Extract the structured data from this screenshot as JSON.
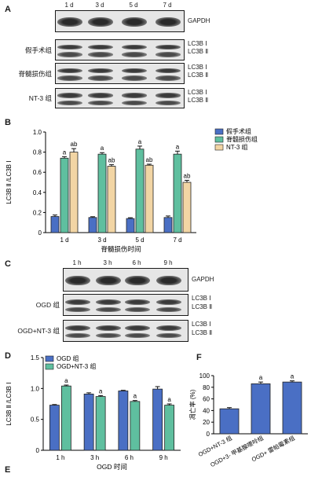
{
  "panels": {
    "A": {
      "letter": "A",
      "lanes": [
        "1 d",
        "3 d",
        "5 d",
        "7 d"
      ],
      "rows": [
        {
          "group": "",
          "markers": [
            "GAPDH"
          ]
        },
        {
          "group": "假手术组",
          "markers": [
            "LC3B Ⅰ",
            "LC3B Ⅱ"
          ]
        },
        {
          "group": "脊髓损伤组",
          "markers": [
            "LC3B Ⅰ",
            "LC3B Ⅱ"
          ]
        },
        {
          "group": "NT-3 组",
          "markers": [
            "LC3B Ⅰ",
            "LC3B Ⅱ"
          ]
        }
      ]
    },
    "B": {
      "letter": "B"
    },
    "C": {
      "letter": "C",
      "lanes": [
        "1 h",
        "3 h",
        "6 h",
        "9 h"
      ],
      "rows": [
        {
          "group": "",
          "markers": [
            "GAPDH"
          ]
        },
        {
          "group": "OGD 组",
          "markers": [
            "LC3B Ⅰ",
            "LC3B Ⅱ"
          ]
        },
        {
          "group": "OGD+NT-3 组",
          "markers": [
            "LC3B Ⅰ",
            "LC3B Ⅱ"
          ]
        }
      ]
    },
    "D": {
      "letter": "D"
    },
    "E": {
      "letter": "E"
    },
    "F": {
      "letter": "F"
    }
  },
  "chart_data": [
    {
      "panel": "B",
      "type": "bar",
      "categories": [
        "1 d",
        "3 d",
        "5 d",
        "7 d"
      ],
      "xlabel": "脊髓损伤时间",
      "ylabel": "LC3B Ⅱ /LC3B Ⅰ",
      "ylim": [
        0,
        1.0
      ],
      "yticks": [
        "0",
        "0.2",
        "0.4",
        "0.6",
        "0.8",
        "1.0"
      ],
      "legend_position": "top-right",
      "series": [
        {
          "name": "假手术组",
          "color": "#4a6fc4",
          "values": [
            0.16,
            0.15,
            0.14,
            0.15
          ],
          "errors": [
            0.015,
            0.008,
            0.008,
            0.015
          ],
          "labels": [
            "",
            "",
            "",
            ""
          ]
        },
        {
          "name": "脊髓损伤组",
          "color": "#5fbf9f",
          "values": [
            0.74,
            0.78,
            0.83,
            0.78
          ],
          "errors": [
            0.015,
            0.015,
            0.03,
            0.03
          ],
          "labels": [
            "a",
            "a",
            "a",
            "a"
          ]
        },
        {
          "name": "NT-3 组",
          "color": "#f2d5a4",
          "values": [
            0.8,
            0.66,
            0.67,
            0.5
          ],
          "errors": [
            0.035,
            0.015,
            0.01,
            0.02
          ],
          "labels": [
            "ab",
            "ab",
            "ab",
            "ab"
          ]
        }
      ]
    },
    {
      "panel": "D",
      "type": "bar",
      "categories": [
        "1 h",
        "3 h",
        "6 h",
        "9 h"
      ],
      "xlabel": "OGD 时间",
      "ylabel": "LC3B Ⅱ /LC3B Ⅰ",
      "ylim": [
        0,
        1.5
      ],
      "yticks": [
        "0",
        "0.5",
        "1.0",
        "1.5"
      ],
      "legend_position": "top-left",
      "series": [
        {
          "name": "OGD 组",
          "color": "#4a6fc4",
          "values": [
            0.73,
            0.91,
            0.96,
            0.99
          ],
          "errors": [
            0.01,
            0.02,
            0.01,
            0.04
          ],
          "labels": [
            "",
            "",
            "",
            ""
          ]
        },
        {
          "name": "OGD+NT-3 组",
          "color": "#5fbf9f",
          "values": [
            1.04,
            0.87,
            0.79,
            0.73
          ],
          "errors": [
            0.015,
            0.015,
            0.015,
            0.02
          ],
          "labels": [
            "a",
            "a",
            "a",
            "a"
          ]
        }
      ]
    },
    {
      "panel": "F",
      "type": "bar",
      "categories": [
        "OGD+NT-3 组",
        "OGD+3- 甲基腺嘌呤组",
        "OGD+ 雷帕霉素组"
      ],
      "ylabel": "凋亡率 (%)",
      "ylim": [
        0,
        100
      ],
      "yticks": [
        "0",
        "20",
        "40",
        "60",
        "80",
        "100"
      ],
      "series": [
        {
          "name": "",
          "color": "#4a6fc4",
          "values": [
            43,
            86,
            89
          ],
          "errors": [
            2,
            3,
            2
          ],
          "labels": [
            "",
            "a",
            "a"
          ]
        }
      ]
    }
  ]
}
